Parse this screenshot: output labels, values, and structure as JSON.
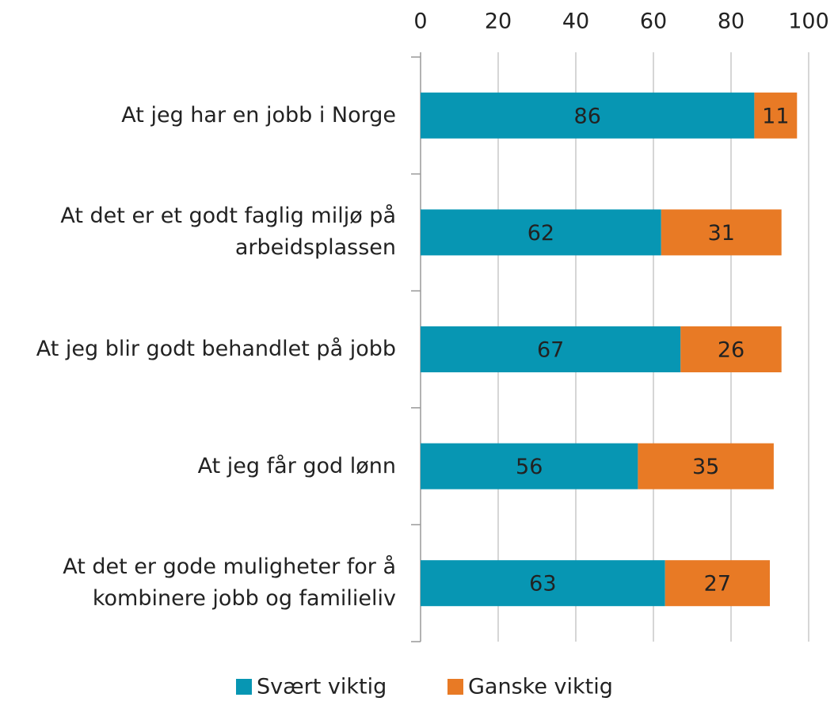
{
  "chart_data": {
    "type": "stacked_bar_horizontal",
    "categories": [
      "At jeg har en jobb i Norge",
      "At det er et godt faglig miljø på arbeidsplassen",
      "At jeg blir godt behandlet på jobb",
      "At jeg får god lønn",
      "At det er gode muligheter for å kombinere jobb og familieliv"
    ],
    "series": [
      {
        "name": "Svært viktig",
        "color": "#0796b3",
        "values": [
          86,
          62,
          67,
          56,
          63
        ]
      },
      {
        "name": "Ganske viktig",
        "color": "#e87a25",
        "values": [
          11,
          31,
          26,
          35,
          27
        ]
      }
    ],
    "xlim": [
      0,
      100
    ],
    "xticks": [
      0,
      20,
      40,
      60,
      80,
      100
    ],
    "grid": true,
    "legend": "bottom"
  }
}
